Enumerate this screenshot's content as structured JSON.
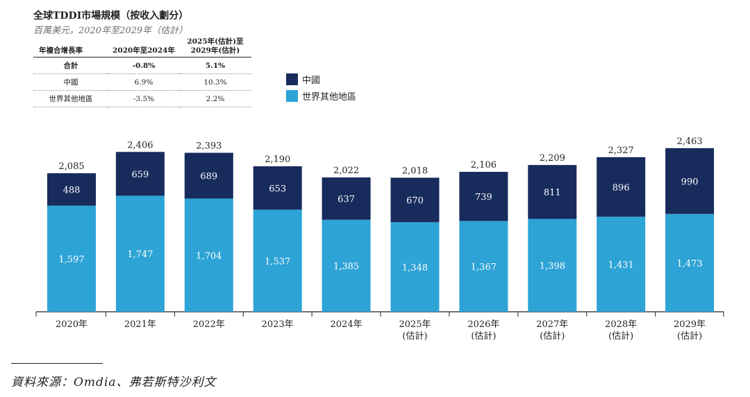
{
  "header": {
    "title": "全球TDDI市場規模（按收入劃分）",
    "subtitle": "百萬美元，2020年至2029年（估計）"
  },
  "cagr_table": {
    "columns": [
      "年複合增長率",
      "2020年至2024年",
      "2025年(估計)至",
      "2029年(估計)"
    ],
    "rows": [
      {
        "label": "合計",
        "v1": "-0.8%",
        "v2": "5.1%"
      },
      {
        "label": "中國",
        "v1": "6.9%",
        "v2": "10.3%"
      },
      {
        "label": "世界其他地區",
        "v1": "-3.5%",
        "v2": "2.2%"
      }
    ]
  },
  "source": "資料來源：Omdia、弗若斯特沙利文",
  "colors": {
    "china": "#172b5c",
    "row": "#2ea3d5"
  },
  "chart_data": {
    "type": "bar",
    "stacked": true,
    "title": "全球TDDI市場規模（按收入劃分）",
    "ylabel": "百萬美元",
    "ylim": [
      0,
      2600
    ],
    "categories": [
      "2020年",
      "2021年",
      "2022年",
      "2023年",
      "2024年",
      "2025年",
      "2026年",
      "2027年",
      "2028年",
      "2029年"
    ],
    "category_notes": [
      "",
      "",
      "",
      "",
      "",
      "(估計)",
      "(估計)",
      "(估計)",
      "(估計)",
      "(估計)"
    ],
    "series": [
      {
        "name": "世界其他地區",
        "values": [
          1597,
          1747,
          1704,
          1537,
          1385,
          1348,
          1367,
          1398,
          1431,
          1473
        ],
        "labels": [
          "1,597",
          "1,747",
          "1,704",
          "1,537",
          "1,385",
          "1,348",
          "1,367",
          "1,398",
          "1,431",
          "1,473"
        ]
      },
      {
        "name": "中國",
        "values": [
          488,
          659,
          689,
          653,
          637,
          670,
          739,
          811,
          896,
          990
        ],
        "labels": [
          "488",
          "659",
          "689",
          "653",
          "637",
          "670",
          "739",
          "811",
          "896",
          "990"
        ]
      }
    ],
    "totals": [
      "2,085",
      "2,406",
      "2,393",
      "2,190",
      "2,022",
      "2,018",
      "2,106",
      "2,209",
      "2,327",
      "2,463"
    ],
    "legend": [
      "中國",
      "世界其他地區"
    ],
    "legend_position": "top-center"
  }
}
